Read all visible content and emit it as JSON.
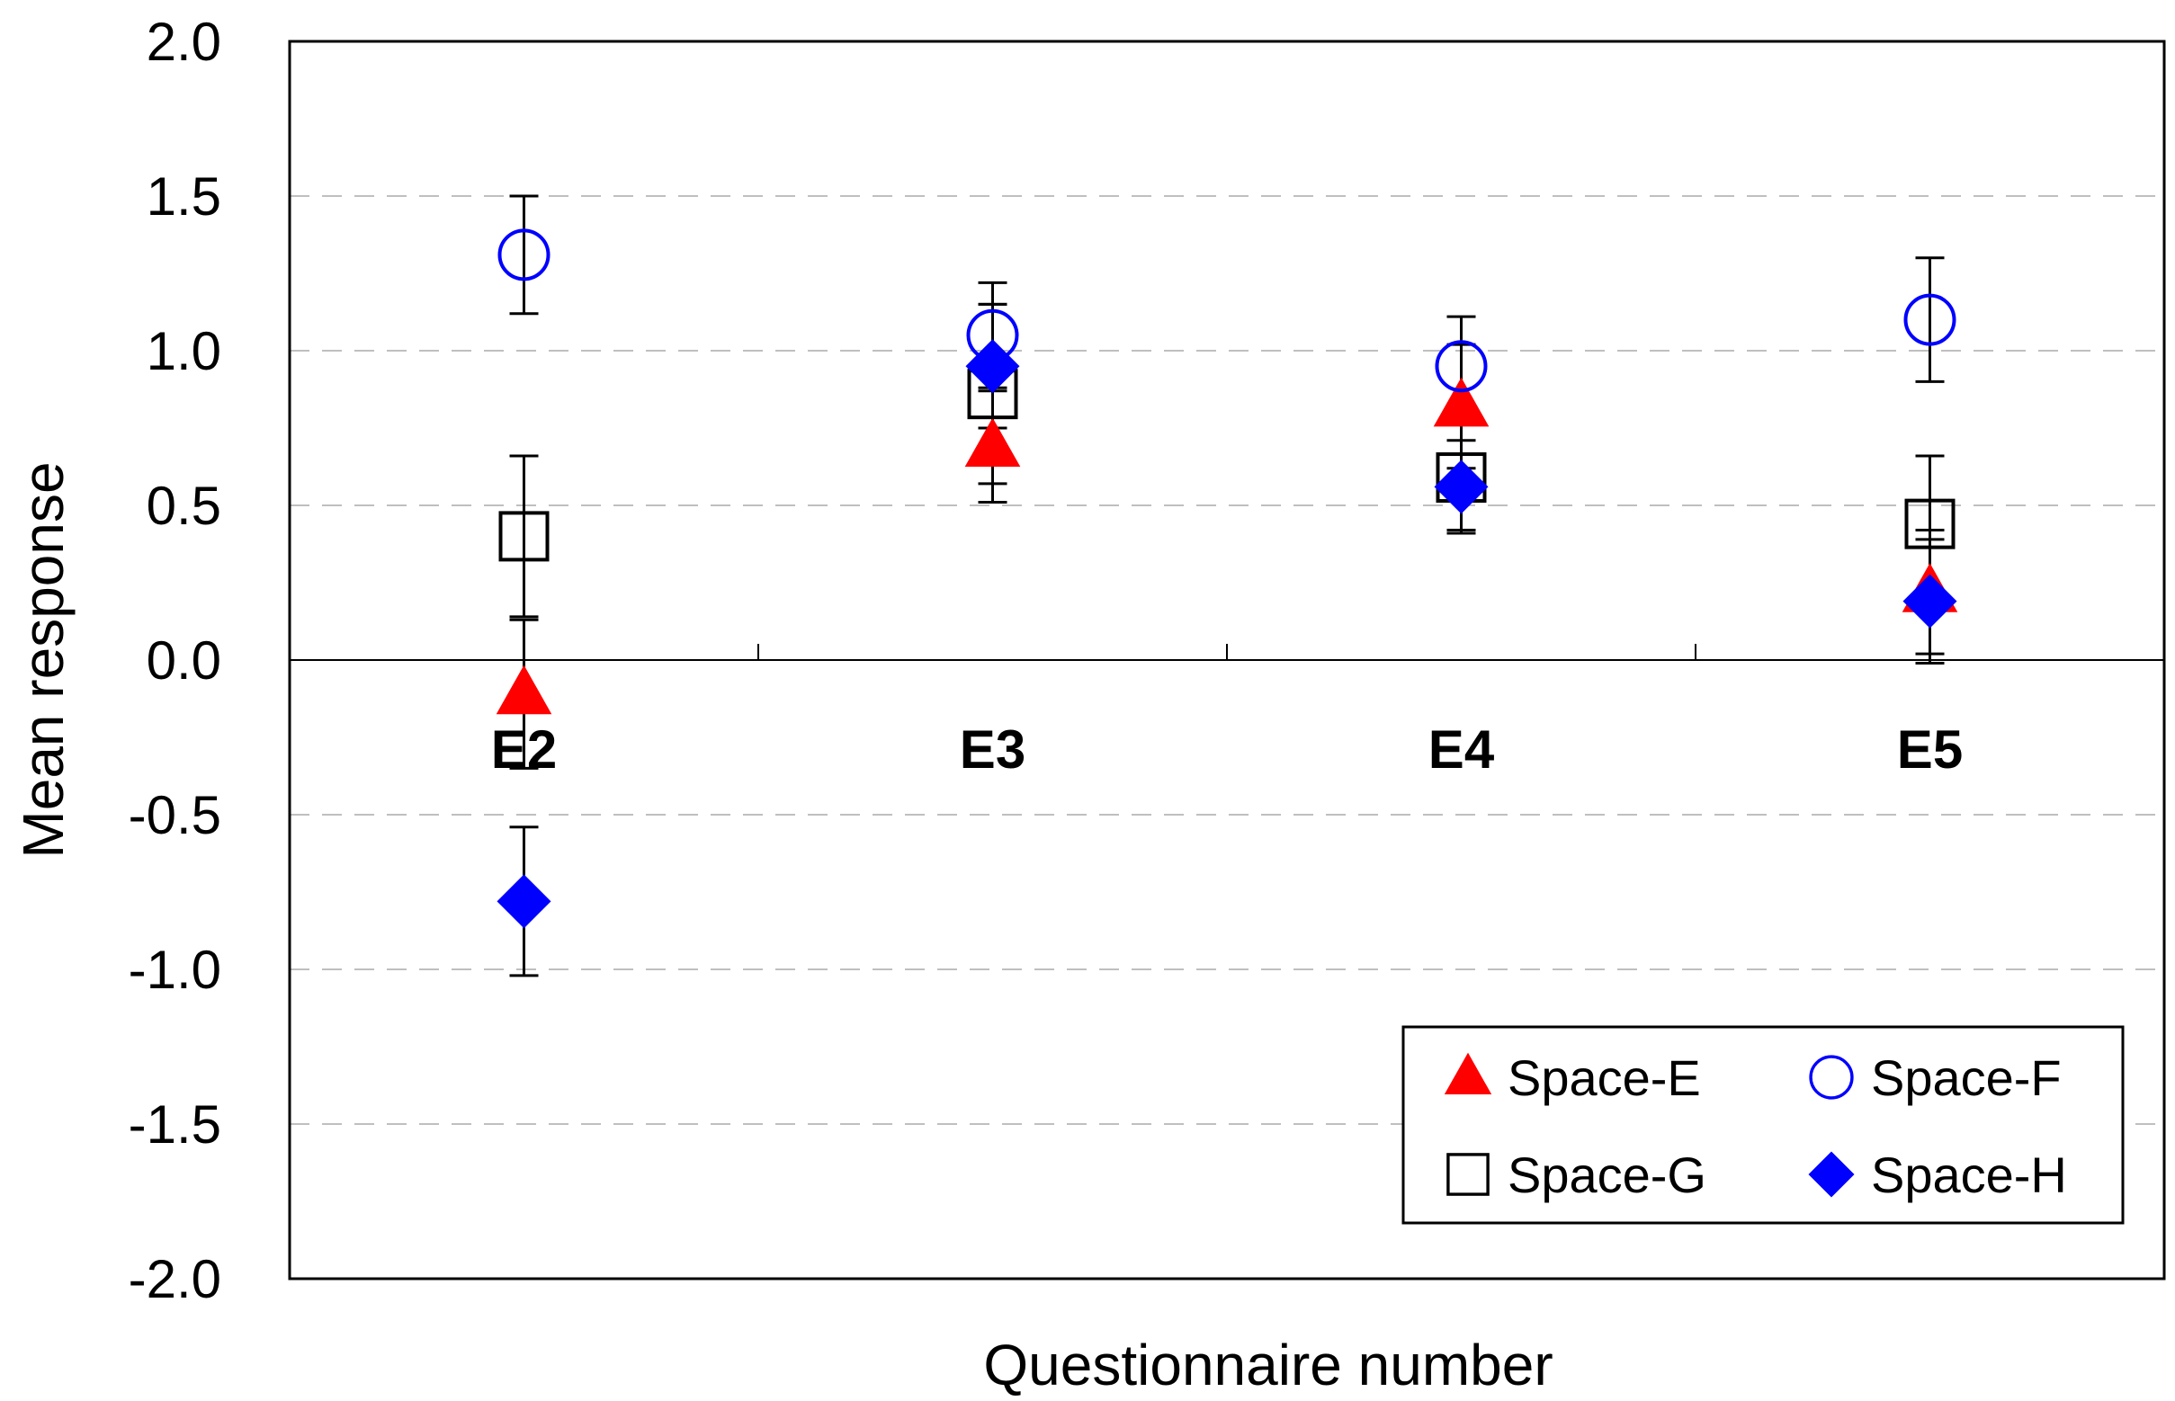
{
  "chart_data": {
    "type": "scatter",
    "title": "",
    "xlabel": "Questionnaire number",
    "ylabel": "Mean response",
    "categories": [
      "E2",
      "E3",
      "E4",
      "E5"
    ],
    "ylim": [
      -2.0,
      2.0
    ],
    "yticks": [
      "2.0",
      "1.5",
      "1.0",
      "0.5",
      "0.0",
      "-0.5",
      "-1.0",
      "-1.5",
      "-2.0"
    ],
    "grid": "horizontal dashed",
    "legend_position": "bottom-right",
    "series": [
      {
        "name": "Space-E",
        "marker": "triangle",
        "color": "#ff0000",
        "values": [
          -0.11,
          0.69,
          0.82,
          0.22
        ],
        "errors": [
          0.24,
          0.18,
          0.2,
          0.2
        ]
      },
      {
        "name": "Space-F",
        "marker": "circle-open",
        "color": "#0000ff",
        "values": [
          1.31,
          1.05,
          0.95,
          1.1
        ],
        "errors": [
          0.19,
          0.17,
          0.16,
          0.2
        ]
      },
      {
        "name": "Space-G",
        "marker": "square-open",
        "color": "#000000",
        "values": [
          0.4,
          0.86,
          0.59,
          0.44
        ],
        "errors": [
          0.26,
          0.29,
          0.17,
          0.22
        ]
      },
      {
        "name": "Space-H",
        "marker": "diamond",
        "color": "#0000ff",
        "values": [
          -0.78,
          0.95,
          0.56,
          0.19
        ],
        "errors": [
          0.24,
          0.2,
          0.15,
          0.2
        ]
      }
    ]
  }
}
